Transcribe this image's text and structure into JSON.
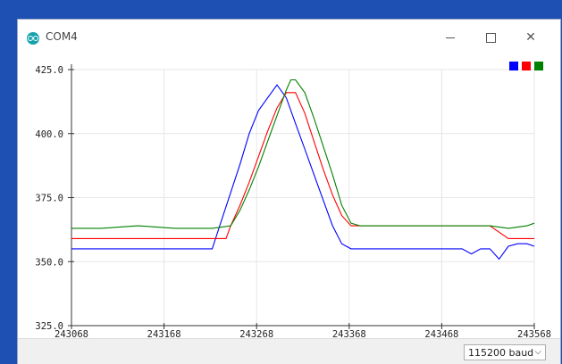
{
  "window": {
    "title": "COM4",
    "minimize_icon": "minimize-icon",
    "maximize_icon": "maximize-icon",
    "close_icon": "close-icon",
    "close_glyph": "✕"
  },
  "chart_data": {
    "type": "line",
    "title": "",
    "xlabel": "",
    "ylabel": "",
    "xlim": [
      243068,
      243568
    ],
    "ylim": [
      325,
      425
    ],
    "x_ticks": [
      "243068",
      "243168",
      "243268",
      "243368",
      "243468",
      "243568"
    ],
    "y_ticks": [
      "425.0",
      "400.0",
      "375.0",
      "350.0",
      "325.0"
    ],
    "grid": true,
    "legend_position": "top-right",
    "series": [
      {
        "color": "#0000ff",
        "x": [
          243068,
          243100,
          243130,
          243160,
          243190,
          243220,
          243230,
          243240,
          243250,
          243260,
          243270,
          243280,
          243290,
          243300,
          243310,
          243320,
          243330,
          243340,
          243350,
          243360,
          243370,
          243400,
          243430,
          243460,
          243490,
          243500,
          243510,
          243520,
          243530,
          243540,
          243550,
          243560,
          243568
        ],
        "y": [
          355,
          355,
          355,
          355,
          355,
          355,
          366,
          377,
          388,
          400,
          409,
          414,
          419,
          414,
          404,
          394,
          384,
          374,
          364,
          357,
          355,
          355,
          355,
          355,
          355,
          353,
          355,
          355,
          351,
          356,
          357,
          357,
          356
        ]
      },
      {
        "color": "#ff0000",
        "x": [
          243068,
          243100,
          243130,
          243160,
          243200,
          243235,
          243240,
          243250,
          243260,
          243270,
          243280,
          243290,
          243300,
          243310,
          243320,
          243330,
          243340,
          243350,
          243360,
          243370,
          243380,
          243420,
          243460,
          243490,
          243520,
          243540,
          243560,
          243568
        ],
        "y": [
          359,
          359,
          359,
          359,
          359,
          359,
          364,
          372,
          381,
          391,
          401,
          410,
          416,
          416,
          408,
          397,
          386,
          376,
          368,
          364,
          364,
          364,
          364,
          364,
          364,
          359,
          359,
          359
        ]
      },
      {
        "color": "#008000",
        "x": [
          243068,
          243100,
          243140,
          243180,
          243220,
          243240,
          243250,
          243260,
          243270,
          243280,
          243290,
          243300,
          243305,
          243310,
          243320,
          243330,
          243340,
          243350,
          243360,
          243370,
          243380,
          243420,
          243460,
          243500,
          243520,
          243540,
          243560,
          243568
        ],
        "y": [
          363,
          363,
          364,
          363,
          363,
          364,
          370,
          378,
          387,
          397,
          407,
          417,
          421,
          421,
          416,
          406,
          395,
          384,
          372,
          365,
          364,
          364,
          364,
          364,
          364,
          363,
          364,
          365
        ]
      }
    ]
  },
  "bottom": {
    "baud_rate": "115200 baud",
    "dropdown_glyph": "⌵"
  }
}
